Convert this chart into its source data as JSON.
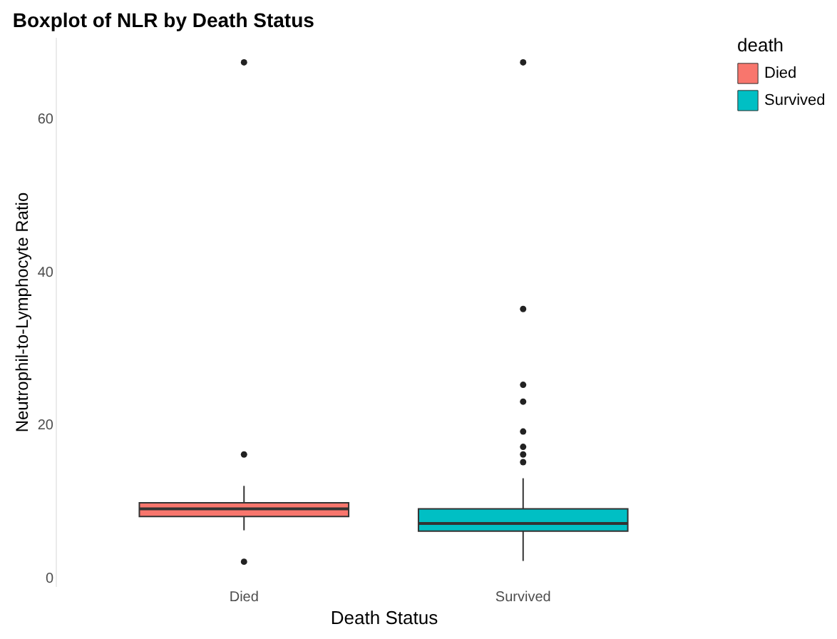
{
  "chart_data": {
    "type": "box",
    "title": "Boxplot of NLR by Death Status",
    "xlabel": "Death Status",
    "ylabel": "Neutrophil-to-Lymphocyte Ratio",
    "legend_title": "death",
    "categories": [
      "Died",
      "Survived"
    ],
    "series": [
      {
        "name": "Died",
        "color": "#f8766d",
        "boxes": [
          {
            "low": 6.2,
            "q1": 8.0,
            "median": 9.0,
            "q3": 9.8,
            "high": 12.0,
            "outliers": [
              2.1,
              16.1,
              67.3
            ]
          },
          null
        ]
      },
      {
        "name": "Survived",
        "color": "#00bfc4",
        "boxes": [
          null,
          {
            "low": 2.2,
            "q1": 6.1,
            "median": 7.1,
            "q3": 9.0,
            "high": 13.0,
            "outliers": [
              15.1,
              16.1,
              17.1,
              19.1,
              23.0,
              25.2,
              35.1,
              67.3
            ]
          }
        ]
      }
    ],
    "ylim": [
      -1.1,
      70.6
    ],
    "yticks": [
      0,
      20,
      40,
      60
    ],
    "grid": false,
    "legend": "right"
  }
}
